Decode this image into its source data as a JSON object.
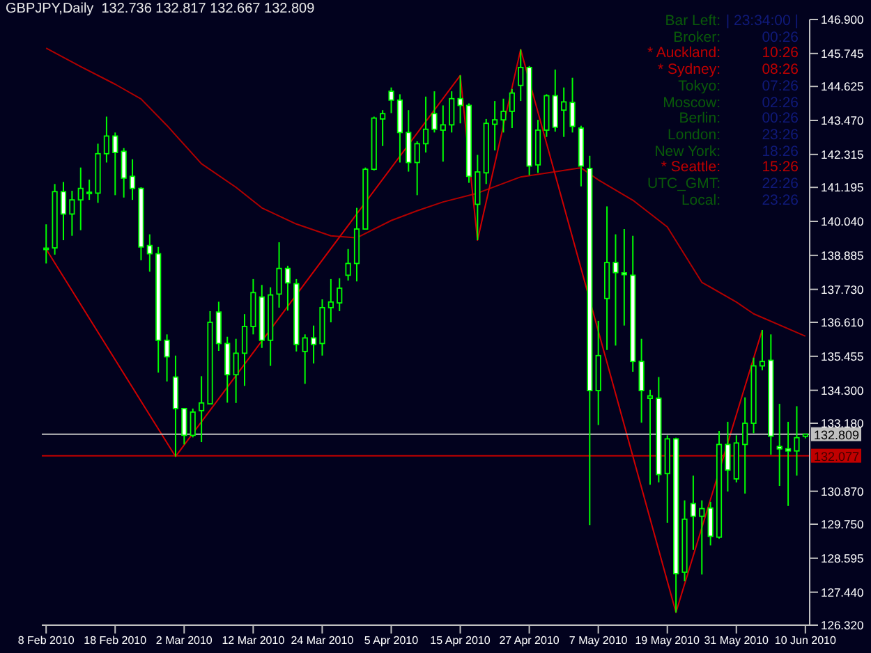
{
  "chart_data": {
    "type": "candlestick",
    "title": "GBPJPY,Daily  132.736 132.817 132.667 132.809",
    "categories": [
      "8 Feb 2010",
      null,
      null,
      null,
      null,
      null,
      null,
      null,
      "18 Feb 2010",
      null,
      null,
      null,
      null,
      null,
      null,
      null,
      "2 Mar 2010",
      null,
      null,
      null,
      null,
      null,
      null,
      null,
      "12 Mar 2010",
      null,
      null,
      null,
      null,
      null,
      null,
      null,
      "24 Mar 2010",
      null,
      null,
      null,
      null,
      null,
      null,
      null,
      "5 Apr 2010",
      null,
      null,
      null,
      null,
      null,
      null,
      null,
      "15 Apr 2010",
      null,
      null,
      null,
      null,
      null,
      null,
      null,
      "27 Apr 2010",
      null,
      null,
      null,
      null,
      null,
      null,
      null,
      "7 May 2010",
      null,
      null,
      null,
      null,
      null,
      null,
      null,
      "19 May 2010",
      null,
      null,
      null,
      null,
      null,
      null,
      null,
      "31 May 2010",
      null,
      null,
      null,
      null,
      null,
      null,
      null,
      "10 Jun 2010"
    ],
    "ohlc": [
      [
        139.1,
        139.94,
        138.61,
        139.13
      ],
      [
        139.14,
        141.31,
        138.91,
        141.05
      ],
      [
        141.05,
        141.38,
        139.4,
        140.29
      ],
      [
        140.29,
        141.08,
        139.55,
        140.77
      ],
      [
        140.77,
        141.87,
        139.74,
        141.16
      ],
      [
        141.03,
        141.46,
        140.77,
        141.03
      ],
      [
        141.0,
        142.68,
        140.67,
        142.34
      ],
      [
        142.34,
        143.6,
        142.04,
        142.94
      ],
      [
        142.94,
        143.06,
        140.93,
        142.38
      ],
      [
        142.42,
        142.53,
        140.85,
        141.51
      ],
      [
        141.57,
        142.15,
        140.77,
        141.16
      ],
      [
        141.16,
        141.2,
        138.72,
        139.17
      ],
      [
        139.22,
        139.6,
        138.33,
        138.94
      ],
      [
        138.94,
        139.17,
        134.9,
        136.0
      ],
      [
        136.0,
        136.2,
        134.6,
        135.44
      ],
      [
        134.75,
        135.48,
        132.05,
        133.68
      ],
      [
        133.68,
        133.68,
        132.46,
        132.77
      ],
      [
        132.77,
        133.68,
        132.7,
        133.56
      ],
      [
        133.61,
        134.78,
        132.54,
        133.87
      ],
      [
        133.84,
        136.99,
        133.84,
        136.61
      ],
      [
        136.96,
        137.31,
        135.64,
        135.89
      ],
      [
        135.89,
        136.12,
        133.88,
        134.83
      ],
      [
        134.83,
        136.05,
        133.87,
        135.56
      ],
      [
        135.56,
        136.89,
        134.45,
        136.47
      ],
      [
        136.47,
        138.08,
        136.2,
        137.62
      ],
      [
        137.47,
        137.88,
        135.74,
        136.0
      ],
      [
        136.0,
        137.8,
        135.13,
        137.54
      ],
      [
        137.57,
        139.33,
        137.11,
        138.44
      ],
      [
        138.44,
        138.53,
        137.01,
        137.95
      ],
      [
        137.92,
        138.08,
        135.62,
        135.86
      ],
      [
        135.62,
        136.2,
        134.52,
        136.08
      ],
      [
        136.08,
        136.5,
        135.21,
        135.86
      ],
      [
        135.89,
        137.39,
        135.48,
        137.11
      ],
      [
        137.11,
        138.08,
        136.61,
        137.3
      ],
      [
        137.27,
        138.11,
        136.99,
        137.77
      ],
      [
        138.21,
        139.1,
        138.03,
        138.61
      ],
      [
        138.61,
        140.5,
        138.0,
        139.78
      ],
      [
        139.78,
        141.87,
        139.78,
        141.81
      ],
      [
        141.81,
        143.6,
        141.77,
        143.55
      ],
      [
        143.52,
        143.82,
        142.6,
        143.7
      ],
      [
        144.46,
        144.59,
        143.72,
        144.16
      ],
      [
        144.16,
        144.36,
        142.04,
        143.06
      ],
      [
        143.06,
        143.82,
        141.73,
        142.04
      ],
      [
        142.04,
        142.76,
        140.93,
        142.68
      ],
      [
        142.68,
        144.28,
        142.38,
        143.17
      ],
      [
        143.7,
        144.46,
        143.06,
        143.17
      ],
      [
        143.14,
        143.98,
        142.07,
        143.32
      ],
      [
        143.32,
        144.46,
        143.06,
        144.21
      ],
      [
        144.21,
        145.0,
        143.37,
        143.98
      ],
      [
        143.98,
        144.05,
        141.35,
        141.57
      ],
      [
        140.62,
        142.3,
        139.4,
        141.72
      ],
      [
        141.69,
        143.52,
        141.31,
        143.37
      ],
      [
        143.34,
        144.13,
        142.45,
        143.49
      ],
      [
        143.49,
        144.21,
        143.06,
        143.78
      ],
      [
        143.78,
        144.54,
        143.21,
        144.4
      ],
      [
        144.66,
        145.88,
        144.13,
        145.27
      ],
      [
        145.27,
        145.32,
        141.61,
        141.92
      ],
      [
        141.96,
        143.49,
        141.69,
        143.14
      ],
      [
        143.14,
        144.36,
        142.91,
        144.31
      ],
      [
        144.31,
        145.2,
        143.09,
        143.24
      ],
      [
        143.82,
        144.59,
        142.91,
        144.1
      ],
      [
        144.08,
        144.92,
        143.06,
        143.27
      ],
      [
        143.21,
        143.29,
        141.23,
        141.92
      ],
      [
        141.84,
        142.27,
        129.72,
        134.29
      ],
      [
        134.29,
        136.66,
        133.12,
        135.48
      ],
      [
        137.42,
        140.55,
        135.67,
        138.64
      ],
      [
        138.64,
        139.6,
        135.82,
        138.3
      ],
      [
        138.29,
        139.78,
        136.5,
        138.23
      ],
      [
        138.21,
        139.55,
        134.93,
        135.28
      ],
      [
        135.28,
        136.05,
        133.2,
        134.29
      ],
      [
        134.03,
        134.32,
        131.09,
        134.11
      ],
      [
        134.03,
        134.75,
        131.17,
        131.44
      ],
      [
        131.47,
        132.77,
        129.8,
        132.65
      ],
      [
        132.65,
        132.69,
        126.75,
        128.07
      ],
      [
        128.12,
        130.56,
        127.81,
        129.92
      ],
      [
        130.45,
        131.4,
        128.88,
        130.02
      ],
      [
        130.02,
        130.56,
        128.04,
        130.28
      ],
      [
        130.3,
        130.51,
        129.03,
        129.34
      ],
      [
        129.31,
        132.92,
        129.26,
        132.46
      ],
      [
        132.46,
        133.23,
        130.86,
        131.59
      ],
      [
        131.29,
        132.77,
        131.17,
        132.51
      ],
      [
        132.46,
        134.06,
        130.79,
        133.18
      ],
      [
        133.18,
        135.41,
        132.84,
        135.13
      ],
      [
        135.13,
        136.35,
        134.98,
        135.28
      ],
      [
        135.32,
        136.2,
        132.11,
        132.74
      ],
      [
        132.39,
        133.84,
        131.05,
        132.31
      ],
      [
        132.31,
        133.23,
        130.37,
        132.24
      ],
      [
        132.24,
        133.76,
        131.4,
        132.69
      ],
      [
        132.736,
        132.817,
        132.667,
        132.809
      ]
    ],
    "color": "#00ff00",
    "series": [
      {
        "type": "line",
        "color": "#b00000",
        "values": [
          145.93,
          null,
          null,
          null,
          145.3,
          null,
          null,
          null,
          144.7,
          null,
          null,
          144.2,
          null,
          null,
          143.3,
          null,
          null,
          null,
          142.0,
          null,
          null,
          null,
          141.2,
          null,
          null,
          140.5,
          null,
          null,
          null,
          139.95,
          null,
          null,
          null,
          139.55,
          null,
          null,
          139.48,
          null,
          null,
          null,
          140.07,
          null,
          null,
          140.4,
          null,
          null,
          140.7,
          null,
          null,
          null,
          141.0,
          null,
          null,
          null,
          null,
          141.55,
          null,
          null,
          null,
          null,
          null,
          null,
          141.86,
          null,
          141.45,
          null,
          null,
          null,
          140.76,
          null,
          null,
          null,
          139.85,
          null,
          null,
          null,
          137.97,
          null,
          null,
          null,
          137.3,
          null,
          136.9,
          null,
          null,
          null,
          null,
          null,
          136.14
        ]
      },
      {
        "type": "line",
        "color": "#d00000",
        "values": [
          139.1,
          null,
          null,
          null,
          null,
          null,
          null,
          null,
          null,
          null,
          null,
          null,
          null,
          null,
          null,
          132.05,
          null,
          null,
          null,
          null,
          null,
          null,
          null,
          null,
          null,
          null,
          null,
          null,
          null,
          null,
          null,
          null,
          null,
          null,
          null,
          null,
          null,
          null,
          null,
          null,
          null,
          null,
          null,
          null,
          null,
          null,
          null,
          null,
          145.0,
          null,
          139.4,
          null,
          null,
          null,
          null,
          145.88,
          null,
          null,
          null,
          null,
          null,
          null,
          null,
          null,
          null,
          null,
          null,
          null,
          null,
          null,
          null,
          null,
          null,
          126.75,
          null,
          null,
          null,
          null,
          null,
          null,
          null,
          null,
          null,
          136.35,
          null,
          null,
          null,
          null,
          null
        ]
      }
    ],
    "ylim": [
      126.32,
      146.9
    ],
    "yticks": [
      {
        "value": 146.9,
        "label": "146.900"
      },
      145.745,
      144.625,
      {
        "value": 143.47,
        "label": "143.470"
      },
      142.315,
      141.195,
      {
        "value": 140.04,
        "label": "140.040"
      },
      138.885,
      {
        "value": 137.73,
        "label": "137.730"
      },
      {
        "value": 136.61,
        "label": "136.610"
      },
      135.455,
      {
        "value": 134.3,
        "label": "134.300"
      },
      {
        "value": 133.18,
        "label": "133.180"
      },
      {
        "value": 130.87,
        "label": "130.870"
      },
      {
        "value": 129.75,
        "label": "129.750"
      },
      128.595,
      {
        "value": 127.44,
        "label": "127.440"
      },
      {
        "value": 126.32,
        "label": "126.320"
      }
    ],
    "ref_lines": [
      {
        "axis": "y",
        "value": 132.809,
        "label": "132.809",
        "color": "#c0c0c0"
      },
      {
        "axis": "y",
        "value": 132.077,
        "label": "132.077",
        "color": "#c00000"
      }
    ],
    "annotations": [
      "Bar Left:",
      "| 23:34:00 |",
      "Broker:",
      "00:26",
      "* Auckland:",
      "10:26",
      "* Sydney:",
      "08:26",
      "Tokyo:",
      "07:26",
      "Moscow:",
      "02:26",
      "Berlin:",
      "00:26",
      "London:",
      "23:26",
      "New York:",
      "18:26",
      "* Seattle:",
      "15:26",
      "UTC_GMT:",
      "22:26",
      "Local:",
      "23:26"
    ]
  }
}
